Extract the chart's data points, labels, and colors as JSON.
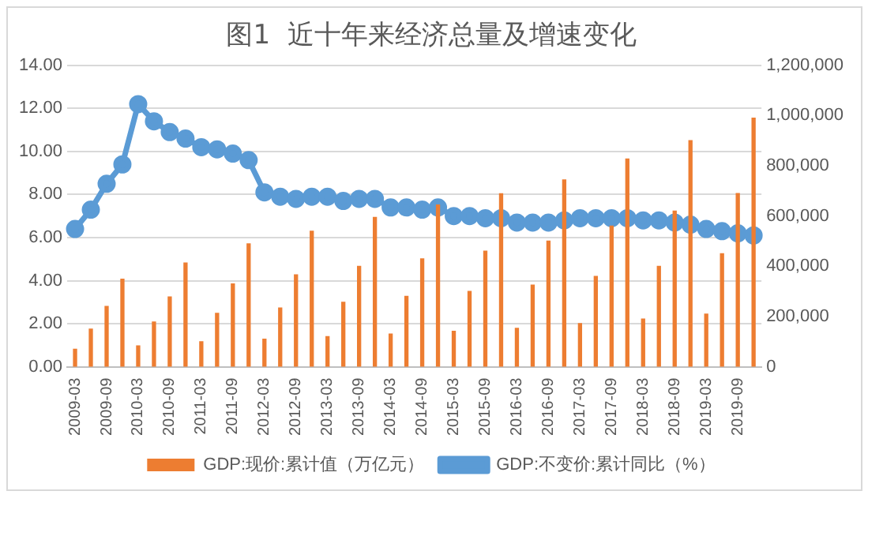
{
  "chart_data": {
    "type": "bar",
    "title": "图1  近十年来经济总量及增速变化",
    "categories": [
      "2009-03",
      null,
      "2009-09",
      null,
      "2010-03",
      null,
      "2010-09",
      null,
      "2011-03",
      null,
      "2011-09",
      null,
      "2012-03",
      null,
      "2012-09",
      null,
      "2013-03",
      null,
      "2013-09",
      null,
      "2014-03",
      null,
      "2014-09",
      null,
      "2015-03",
      null,
      "2015-09",
      null,
      "2016-03",
      null,
      "2016-09",
      null,
      "2017-03",
      null,
      "2017-09",
      null,
      "2018-03",
      null,
      "2018-09",
      null,
      "2019-03",
      null,
      "2019-09",
      null
    ],
    "series": [
      {
        "name": "GDP:现价:累计值（万亿元）",
        "axis": "y2",
        "color": "#ed7d31",
        "values": [
          70000,
          150000,
          240000,
          349000,
          83000,
          178000,
          278000,
          413000,
          100000,
          213000,
          330000,
          489000,
          110000,
          234000,
          366000,
          540000,
          120000,
          257000,
          400000,
          595000,
          130000,
          280000,
          430000,
          644000,
          141000,
          300000,
          460000,
          689000,
          153000,
          325000,
          500000,
          744000,
          172000,
          360000,
          560000,
          827000,
          190000,
          400000,
          620000,
          900000,
          210000,
          450000,
          690000,
          990000
        ]
      },
      {
        "name": "GDP:不变价:累计同比（%）",
        "type": "line",
        "axis": "y",
        "color": "#5b9bd5",
        "values": [
          6.4,
          7.3,
          8.5,
          9.4,
          12.2,
          11.4,
          10.9,
          10.6,
          10.2,
          10.1,
          9.9,
          9.6,
          8.1,
          7.9,
          7.8,
          7.9,
          7.9,
          7.7,
          7.8,
          7.8,
          7.4,
          7.4,
          7.3,
          7.4,
          7.0,
          7.0,
          6.9,
          6.9,
          6.7,
          6.7,
          6.7,
          6.8,
          6.9,
          6.9,
          6.9,
          6.9,
          6.8,
          6.8,
          6.7,
          6.6,
          6.4,
          6.3,
          6.2,
          6.1
        ]
      }
    ],
    "ylim": [
      0,
      14
    ],
    "yticks": [
      {
        "value": 0,
        "label": "0.00"
      },
      {
        "value": 2,
        "label": "2.00"
      },
      {
        "value": 4,
        "label": "4.00"
      },
      {
        "value": 6,
        "label": "6.00"
      },
      {
        "value": 8,
        "label": "8.00"
      },
      {
        "value": 10,
        "label": "10.00"
      },
      {
        "value": 12,
        "label": "12.00"
      },
      {
        "value": 14,
        "label": "14.00"
      }
    ],
    "y2lim": [
      0,
      1200000
    ],
    "y2ticks": [
      0,
      {
        "value": 200000,
        "label": "200,000"
      },
      {
        "value": 400000,
        "label": "400,000"
      },
      {
        "value": 600000,
        "label": "600,000"
      },
      {
        "value": 800000,
        "label": "800,000"
      },
      {
        "value": 1000000,
        "label": "1,000,000"
      },
      {
        "value": 1200000,
        "label": "1,200,000"
      }
    ],
    "grid": "y",
    "legend": "bottom",
    "marker": "circle",
    "line_style": "solid"
  }
}
